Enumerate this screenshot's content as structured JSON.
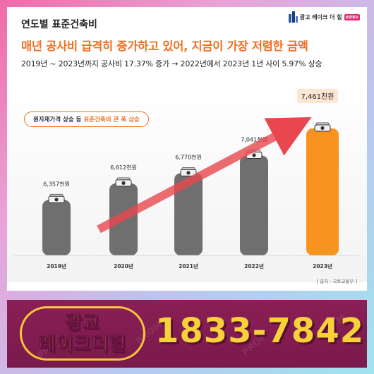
{
  "header": {
    "section_title": "연도별 표준건축비",
    "brand_name": "광고 레이크 더 힐",
    "brand_tag": "분양정보",
    "headline": "매년 공사비 급격히 증가하고 있어, 지금이 가장 저렴한 금액",
    "subline": "2019년 ~ 2023년까지 공사비 17.37% 증가 → 2022년에서 2023년 1년 사이 5.97% 상승"
  },
  "callout": {
    "prefix": "원자재가격 상승 등 ",
    "highlight": "표준건축비 큰 폭 상승"
  },
  "source": "[ 출처 : 국토교통부 ]",
  "chart_data": {
    "type": "bar",
    "categories": [
      "2019년",
      "2020년",
      "2021년",
      "2022년",
      "2023년"
    ],
    "values": [
      6357,
      6612,
      6770,
      7041,
      7461
    ],
    "value_labels": [
      "6,357천원",
      "6,612천원",
      "6,770천원",
      "7,041천원",
      "7,461천원"
    ],
    "unit": "천원",
    "ylim": [
      5500,
      7700
    ],
    "grid": false,
    "highlight_index": 4,
    "colors": {
      "bar": "#6f6f6f",
      "highlight_bar": "#f7931e",
      "arrow": "#e8474f",
      "label_pill": "#fde7d3"
    }
  },
  "footer": {
    "pill_line1": "광교",
    "pill_line2": "레이크더힐",
    "phone": "1833-7842",
    "accent": "#f7d13a",
    "background": "#7a1a4c"
  }
}
